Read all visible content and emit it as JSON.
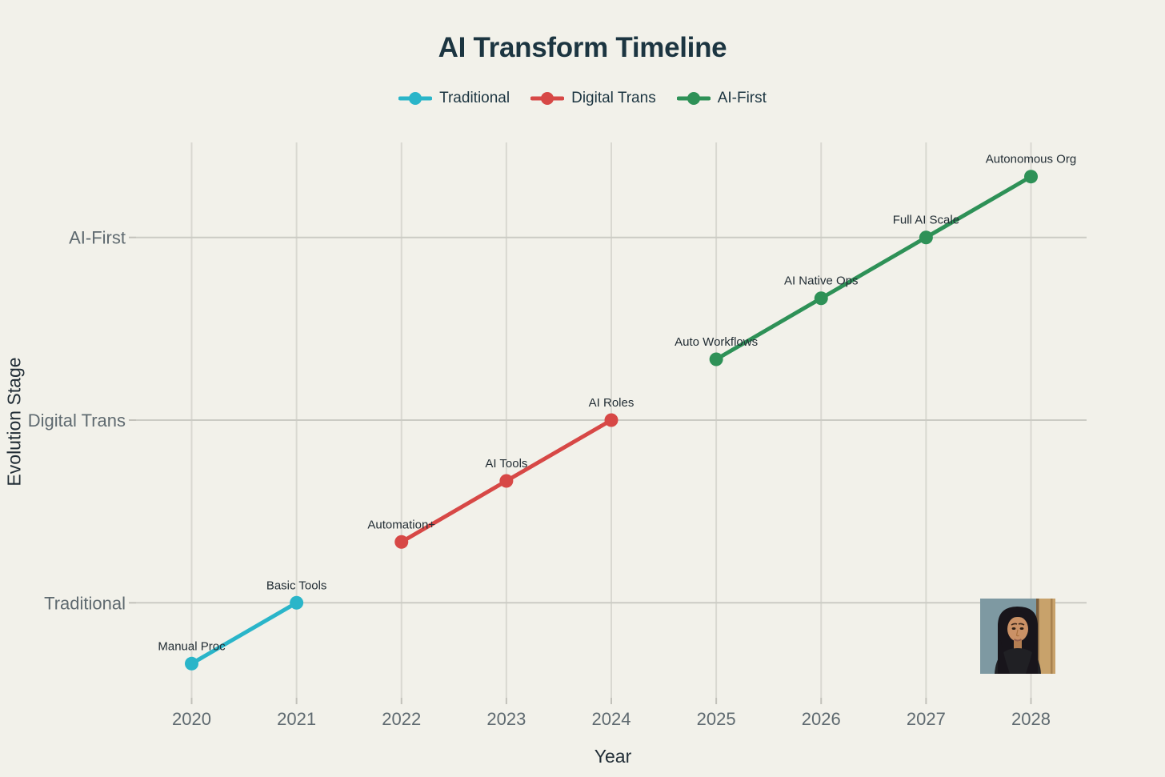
{
  "page": {
    "background": "#f2f1ea"
  },
  "chart_data": {
    "type": "line",
    "title": "AI Transform Timeline",
    "xlabel": "Year",
    "ylabel": "Evolution Stage",
    "x": [
      2020,
      2021,
      2022,
      2023,
      2024,
      2025,
      2026,
      2027,
      2028
    ],
    "x_tick_labels": [
      "2020",
      "2021",
      "2022",
      "2023",
      "2024",
      "2025",
      "2026",
      "2027",
      "2028"
    ],
    "y_ticks": [
      {
        "value": 1,
        "label": "Traditional"
      },
      {
        "value": 2,
        "label": "Digital Trans"
      },
      {
        "value": 3,
        "label": "AI-First"
      }
    ],
    "xlim": [
      2019.47,
      2028.53
    ],
    "ylim": [
      0.48,
      3.52
    ],
    "grid": true,
    "legend_position": "top-center",
    "series": [
      {
        "name": "Traditional",
        "color": "#2ab5c9",
        "points": [
          {
            "x": 2020,
            "y": 0.667,
            "label": "Manual Proc"
          },
          {
            "x": 2021,
            "y": 1.0,
            "label": "Basic Tools"
          }
        ]
      },
      {
        "name": "Digital Trans",
        "color": "#d74846",
        "points": [
          {
            "x": 2022,
            "y": 1.333,
            "label": "Automation+"
          },
          {
            "x": 2023,
            "y": 1.667,
            "label": "AI Tools"
          },
          {
            "x": 2024,
            "y": 2.0,
            "label": "AI Roles"
          }
        ]
      },
      {
        "name": "AI-First",
        "color": "#2e9157",
        "points": [
          {
            "x": 2025,
            "y": 2.333,
            "label": "Auto Workflows"
          },
          {
            "x": 2026,
            "y": 2.667,
            "label": "AI Native Ops"
          },
          {
            "x": 2027,
            "y": 3.0,
            "label": "Full AI Scale"
          },
          {
            "x": 2028,
            "y": 3.333,
            "label": "Autonomous Org"
          }
        ]
      }
    ],
    "colors": {
      "title": "#1c3541",
      "axis_title": "#222e37",
      "tick_label": "#5f6a70",
      "point_label": "#232e35",
      "grid_vertical": "#d9d8d1",
      "grid_horizontal": "#cbcbc4",
      "tick_mark": "#c2c1ba"
    }
  },
  "avatar": {
    "description": "Illustrated portrait of a woman with long dark hair wearing a black top"
  }
}
